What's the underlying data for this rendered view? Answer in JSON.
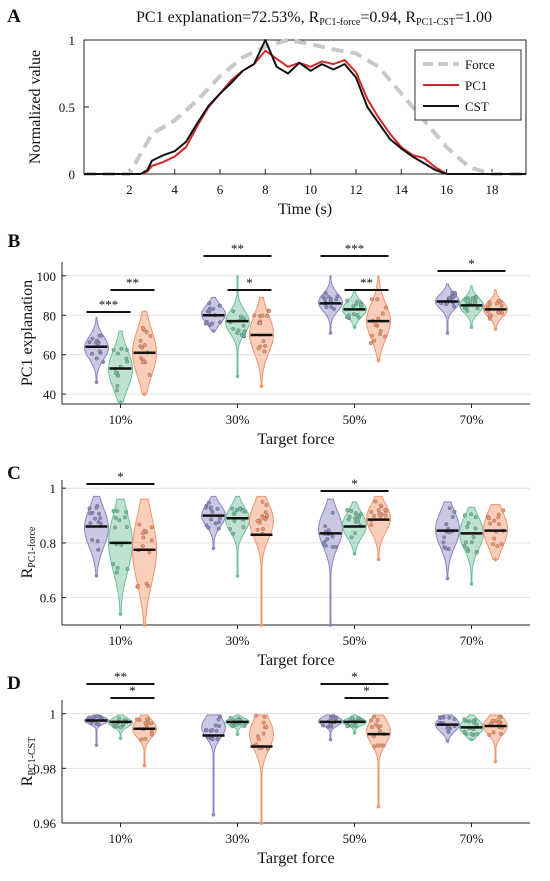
{
  "chart_data": [
    {
      "id": "A",
      "type": "line",
      "panel_label": "A",
      "title": "PC1 explanation=72.53%, R",
      "title_sub1": "PC1-force",
      "title_mid": "=0.94, R",
      "title_sub2": "PC1-CST",
      "title_end": "=1.00",
      "xlabel": "Time (s)",
      "ylabel": "Normalized value",
      "xlim": [
        0,
        19.5
      ],
      "ylim": [
        0,
        1
      ],
      "xticks": [
        "2",
        "4",
        "6",
        "8",
        "10",
        "12",
        "14",
        "16",
        "18"
      ],
      "yticks": [
        "0",
        "0.5",
        "1"
      ],
      "legend_position": "top-right",
      "series": [
        {
          "name": "Force",
          "color": "#c8c8c8",
          "style": "dashed",
          "x": [
            0,
            2,
            3,
            4,
            5,
            6,
            7,
            8,
            9,
            10,
            11,
            12,
            13,
            14,
            15,
            16,
            17,
            18,
            19.5
          ],
          "y": [
            0,
            0,
            0.3,
            0.4,
            0.55,
            0.73,
            0.87,
            0.95,
            1.0,
            0.97,
            0.93,
            0.9,
            0.8,
            0.6,
            0.4,
            0.2,
            0.05,
            0,
            0
          ]
        },
        {
          "name": "PC1",
          "color": "#d62728",
          "style": "solid",
          "x": [
            0,
            2.5,
            2.8,
            3,
            3.5,
            4,
            4.5,
            5,
            5.5,
            6,
            6.5,
            7,
            7.5,
            8,
            8.5,
            9,
            9.5,
            10,
            10.5,
            11,
            11.5,
            12,
            12.5,
            13,
            13.5,
            14,
            14.5,
            15,
            15.5,
            16,
            19.5
          ],
          "y": [
            0,
            0,
            0.02,
            0.06,
            0.09,
            0.13,
            0.2,
            0.36,
            0.5,
            0.6,
            0.7,
            0.77,
            0.82,
            0.92,
            0.86,
            0.8,
            0.83,
            0.8,
            0.84,
            0.82,
            0.85,
            0.76,
            0.56,
            0.42,
            0.3,
            0.2,
            0.14,
            0.12,
            0.05,
            0,
            0
          ]
        },
        {
          "name": "CST",
          "color": "#111111",
          "style": "solid",
          "x": [
            0,
            2.5,
            2.8,
            3,
            3.5,
            4,
            4.5,
            5,
            5.5,
            6,
            6.5,
            7,
            7.5,
            8,
            8.5,
            9,
            9.5,
            10,
            10.5,
            11,
            11.5,
            12,
            12.5,
            13,
            13.5,
            14,
            14.5,
            15,
            15.5,
            16,
            19.5
          ],
          "y": [
            0,
            0,
            0.03,
            0.1,
            0.14,
            0.17,
            0.24,
            0.38,
            0.51,
            0.6,
            0.68,
            0.77,
            0.82,
            1.0,
            0.8,
            0.75,
            0.83,
            0.77,
            0.82,
            0.78,
            0.82,
            0.72,
            0.5,
            0.38,
            0.26,
            0.19,
            0.13,
            0.08,
            0.03,
            0,
            0
          ]
        }
      ]
    },
    {
      "id": "B",
      "type": "violin",
      "panel_label": "B",
      "xlabel": "Target force",
      "ylabel": "PC1 explanation",
      "ylim": [
        35,
        107
      ],
      "yticks": [
        40,
        60,
        80,
        100
      ],
      "categories": [
        "10%",
        "30%",
        "50%",
        "70%"
      ],
      "group_colors": [
        "#8a86c0",
        "#6fbf9c",
        "#f2946b"
      ],
      "groups": [
        {
          "category": "10%",
          "violins": [
            {
              "median": 64,
              "min": 46,
              "max": 79,
              "q1": 59,
              "q3": 68
            },
            {
              "median": 53,
              "min": 36,
              "max": 72,
              "q1": 45,
              "q3": 60
            },
            {
              "median": 61,
              "min": 40,
              "max": 82,
              "q1": 52,
              "q3": 70
            }
          ]
        },
        {
          "category": "30%",
          "violins": [
            {
              "median": 80,
              "min": 72,
              "max": 89,
              "q1": 77,
              "q3": 84
            },
            {
              "median": 77,
              "min": 49,
              "max": 100,
              "q1": 72,
              "q3": 81
            },
            {
              "median": 70,
              "min": 44,
              "max": 89,
              "q1": 63,
              "q3": 78
            }
          ]
        },
        {
          "category": "50%",
          "violins": [
            {
              "median": 86,
              "min": 71,
              "max": 100,
              "q1": 83,
              "q3": 90
            },
            {
              "median": 83,
              "min": 74,
              "max": 92,
              "q1": 80,
              "q3": 86
            },
            {
              "median": 77,
              "min": 57,
              "max": 100,
              "q1": 70,
              "q3": 84
            }
          ]
        },
        {
          "category": "70%",
          "violins": [
            {
              "median": 87,
              "min": 71,
              "max": 96,
              "q1": 84,
              "q3": 90
            },
            {
              "median": 85,
              "min": 74,
              "max": 95,
              "q1": 82,
              "q3": 88
            },
            {
              "median": 83,
              "min": 73,
              "max": 93,
              "q1": 80,
              "q3": 86
            }
          ]
        }
      ],
      "significance": [
        {
          "category": "10%",
          "from": 0,
          "to": 1,
          "y": 104,
          "label": "***"
        },
        {
          "category": "10%",
          "from": 1,
          "to": 2,
          "y": 110,
          "label": "**"
        },
        {
          "category": "30%",
          "from": 0,
          "to": 2,
          "y": 119,
          "label": "**"
        },
        {
          "category": "30%",
          "from": 1,
          "to": 2,
          "y": 110,
          "label": "*"
        },
        {
          "category": "50%",
          "from": 0,
          "to": 2,
          "y": 119,
          "label": "***"
        },
        {
          "category": "50%",
          "from": 1,
          "to": 2,
          "y": 110,
          "label": "**"
        },
        {
          "category": "70%",
          "from": 0,
          "to": 2,
          "y": 103,
          "label": "*"
        }
      ]
    },
    {
      "id": "C",
      "type": "violin",
      "panel_label": "C",
      "xlabel": "Target force",
      "ylabel": "R",
      "ylabel_sub": "PC1-force",
      "ylim": [
        0.5,
        1.03
      ],
      "yticks": [
        0.6,
        0.8,
        1
      ],
      "categories": [
        "10%",
        "30%",
        "50%",
        "70%"
      ],
      "group_colors": [
        "#8a86c0",
        "#6fbf9c",
        "#f2946b"
      ],
      "groups": [
        {
          "category": "10%",
          "violins": [
            {
              "median": 0.86,
              "min": 0.68,
              "max": 0.97,
              "q1": 0.8,
              "q3": 0.91
            },
            {
              "median": 0.8,
              "min": 0.54,
              "max": 0.96,
              "q1": 0.72,
              "q3": 0.88
            },
            {
              "median": 0.775,
              "min": 0.5,
              "max": 0.96,
              "q1": 0.68,
              "q3": 0.87
            }
          ]
        },
        {
          "category": "30%",
          "violins": [
            {
              "median": 0.9,
              "min": 0.78,
              "max": 0.97,
              "q1": 0.87,
              "q3": 0.93
            },
            {
              "median": 0.89,
              "min": 0.68,
              "max": 0.97,
              "q1": 0.85,
              "q3": 0.92
            },
            {
              "median": 0.83,
              "min": 0.5,
              "max": 0.97,
              "q1": 0.83,
              "q3": 0.93
            }
          ]
        },
        {
          "category": "50%",
          "violins": [
            {
              "median": 0.835,
              "min": 0.5,
              "max": 0.96,
              "q1": 0.8,
              "q3": 0.9
            },
            {
              "median": 0.86,
              "min": 0.76,
              "max": 0.95,
              "q1": 0.83,
              "q3": 0.9
            },
            {
              "median": 0.885,
              "min": 0.74,
              "max": 0.97,
              "q1": 0.85,
              "q3": 0.93
            }
          ]
        },
        {
          "category": "70%",
          "violins": [
            {
              "median": 0.845,
              "min": 0.67,
              "max": 0.95,
              "q1": 0.8,
              "q3": 0.9
            },
            {
              "median": 0.835,
              "min": 0.65,
              "max": 0.93,
              "q1": 0.79,
              "q3": 0.88
            },
            {
              "median": 0.845,
              "min": 0.74,
              "max": 0.94,
              "q1": 0.8,
              "q3": 0.9
            }
          ]
        }
      ],
      "significance": [
        {
          "category": "10%",
          "from": 0,
          "to": 2,
          "y": 1.0,
          "label": "*"
        },
        {
          "category": "50%",
          "from": 0,
          "to": 2,
          "y": 0.99,
          "label": "*"
        }
      ]
    },
    {
      "id": "D",
      "type": "violin",
      "panel_label": "D",
      "xlabel": "Target force",
      "ylabel": "R",
      "ylabel_sub": "PC1-CST",
      "ylim": [
        0.96,
        1.005
      ],
      "yticks": [
        "0.96",
        "0.98",
        "1"
      ],
      "categories": [
        "10%",
        "30%",
        "50%",
        "70%"
      ],
      "group_colors": [
        "#8a86c0",
        "#6fbf9c",
        "#f2946b"
      ],
      "groups": [
        {
          "category": "10%",
          "violins": [
            {
              "median": 0.9975,
              "min": 0.9885,
              "max": 0.9995,
              "q1": 0.9965,
              "q3": 0.9985
            },
            {
              "median": 0.997,
              "min": 0.991,
              "max": 0.9995,
              "q1": 0.9955,
              "q3": 0.998
            },
            {
              "median": 0.9945,
              "min": 0.981,
              "max": 0.9995,
              "q1": 0.992,
              "q3": 0.997
            }
          ]
        },
        {
          "category": "30%",
          "violins": [
            {
              "median": 0.992,
              "min": 0.963,
              "max": 0.9995,
              "q1": 0.992,
              "q3": 0.998
            },
            {
              "median": 0.997,
              "min": 0.9925,
              "max": 0.9995,
              "q1": 0.996,
              "q3": 0.998
            },
            {
              "median": 0.988,
              "min": 0.96,
              "max": 0.9995,
              "q1": 0.988,
              "q3": 0.997
            }
          ]
        },
        {
          "category": "50%",
          "violins": [
            {
              "median": 0.997,
              "min": 0.9905,
              "max": 0.9995,
              "q1": 0.996,
              "q3": 0.9985
            },
            {
              "median": 0.997,
              "min": 0.993,
              "max": 0.9995,
              "q1": 0.996,
              "q3": 0.998
            },
            {
              "median": 0.9925,
              "min": 0.966,
              "max": 0.9995,
              "q1": 0.99,
              "q3": 0.997
            }
          ]
        },
        {
          "category": "70%",
          "violins": [
            {
              "median": 0.996,
              "min": 0.99,
              "max": 0.9995,
              "q1": 0.994,
              "q3": 0.998
            },
            {
              "median": 0.995,
              "min": 0.9905,
              "max": 0.9995,
              "q1": 0.993,
              "q3": 0.997
            },
            {
              "median": 0.9955,
              "min": 0.9825,
              "max": 0.9995,
              "q1": 0.993,
              "q3": 0.998
            }
          ]
        }
      ],
      "significance": [
        {
          "category": "10%",
          "from": 0,
          "to": 2,
          "y": 1.0037,
          "label": "**"
        },
        {
          "category": "10%",
          "from": 1,
          "to": 2,
          "y": 1.0016,
          "label": "*"
        },
        {
          "category": "50%",
          "from": 0,
          "to": 2,
          "y": 1.0037,
          "label": "*"
        },
        {
          "category": "50%",
          "from": 1,
          "to": 2,
          "y": 1.0016,
          "label": "*"
        }
      ]
    }
  ]
}
